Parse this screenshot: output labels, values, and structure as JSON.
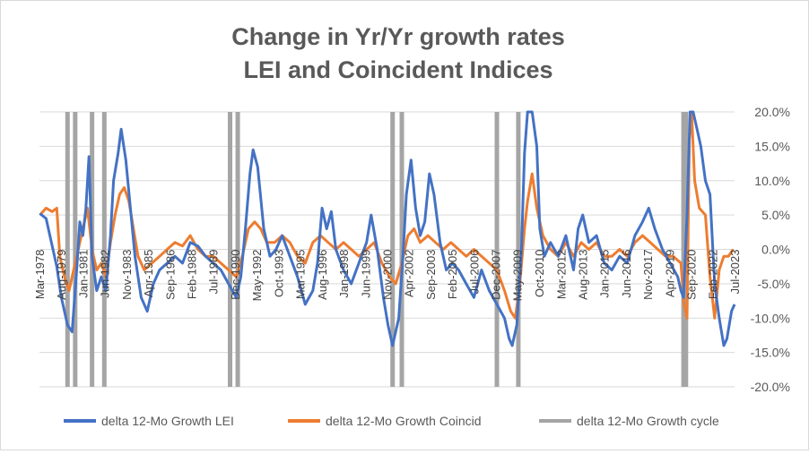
{
  "chart_data": {
    "type": "line",
    "title_lines": [
      "Change in Yr/Yr growth rates",
      "LEI and Coincident Indices"
    ],
    "y_axis": {
      "min": -20,
      "max": 20,
      "step": 5,
      "position": "right",
      "tick_labels": [
        "20.0%",
        "15.0%",
        "10.0%",
        "5.0%",
        "0.0%",
        "-5.0%",
        "-10.0%",
        "-15.0%",
        "-20.0%"
      ]
    },
    "x_axis": {
      "range": [
        1978.17,
        2023.5
      ],
      "tick_labels": [
        "Mar-1978",
        "Aug-1979",
        "Jan-1981",
        "Jun-1982",
        "Nov-1983",
        "Apr-1985",
        "Sep-1986",
        "Feb-1988",
        "Jul-1989",
        "Dec-1990",
        "May-1992",
        "Oct-1993",
        "Mar-1995",
        "Aug-1996",
        "Jan-1998",
        "Jun-1999",
        "Nov-2000",
        "Apr-2002",
        "Sep-2003",
        "Feb-2005",
        "Jul-2006",
        "Dec-2007",
        "May-2009",
        "Oct-2010",
        "Mar-2012",
        "Aug-2013",
        "Jan-2015",
        "Jun-2016",
        "Nov-2017",
        "Apr-2019",
        "Sep-2020",
        "Feb-2022",
        "Jul-2023"
      ],
      "tick_values": [
        1978.17,
        1979.58,
        1981.0,
        1982.42,
        1983.83,
        1985.25,
        1986.67,
        1988.08,
        1989.5,
        1990.92,
        1992.33,
        1993.75,
        1995.17,
        1996.58,
        1998.0,
        1999.42,
        2000.83,
        2002.25,
        2003.67,
        2005.08,
        2006.5,
        2007.92,
        2009.33,
        2010.75,
        2012.17,
        2013.58,
        2015.0,
        2016.42,
        2017.83,
        2019.25,
        2020.67,
        2022.08,
        2023.5
      ]
    },
    "legend_position": "bottom",
    "legend": [
      "delta 12-Mo Growth LEI",
      "delta 12-Mo Growth Coincid",
      "delta 12-Mo Growth cycle"
    ],
    "colors": {
      "lei": "#4472c4",
      "coincid": "#ed7d31",
      "cycle": "#a5a5a5",
      "grid": "#d9d9d9"
    },
    "cycle_bars": [
      1980.0,
      1980.5,
      1981.6,
      1982.4,
      1990.6,
      1991.1,
      2001.2,
      2001.8,
      2008.0,
      2009.4,
      2020.17,
      2020.33
    ],
    "series": [
      {
        "name": "delta 12-Mo Growth LEI",
        "points": [
          [
            1978.2,
            5.2
          ],
          [
            1978.6,
            4.5
          ],
          [
            1979.0,
            0.5
          ],
          [
            1979.3,
            -2.5
          ],
          [
            1979.6,
            -7
          ],
          [
            1980.0,
            -11
          ],
          [
            1980.3,
            -12
          ],
          [
            1980.6,
            -3
          ],
          [
            1980.8,
            4
          ],
          [
            1981.0,
            2
          ],
          [
            1981.2,
            6
          ],
          [
            1981.4,
            13.5
          ],
          [
            1981.6,
            -1
          ],
          [
            1981.9,
            -6
          ],
          [
            1982.2,
            -4
          ],
          [
            1982.5,
            -6
          ],
          [
            1982.8,
            2
          ],
          [
            1983.0,
            10
          ],
          [
            1983.3,
            14
          ],
          [
            1983.5,
            17.5
          ],
          [
            1983.8,
            13
          ],
          [
            1984.1,
            6
          ],
          [
            1984.4,
            -1
          ],
          [
            1984.8,
            -7
          ],
          [
            1985.2,
            -9
          ],
          [
            1985.6,
            -5
          ],
          [
            1986.0,
            -3
          ],
          [
            1986.5,
            -2
          ],
          [
            1987.0,
            -1
          ],
          [
            1987.5,
            -2
          ],
          [
            1988.0,
            1
          ],
          [
            1988.5,
            0.5
          ],
          [
            1989.0,
            -1
          ],
          [
            1989.5,
            -2
          ],
          [
            1990.0,
            -3
          ],
          [
            1990.5,
            -5
          ],
          [
            1991.0,
            -7
          ],
          [
            1991.3,
            -4
          ],
          [
            1991.6,
            3
          ],
          [
            1991.9,
            11
          ],
          [
            1992.1,
            14.5
          ],
          [
            1992.4,
            12
          ],
          [
            1992.8,
            3
          ],
          [
            1993.2,
            -1
          ],
          [
            1993.6,
            0
          ],
          [
            1994.0,
            2
          ],
          [
            1994.5,
            -1
          ],
          [
            1995.0,
            -4
          ],
          [
            1995.5,
            -8
          ],
          [
            1996.0,
            -6
          ],
          [
            1996.3,
            -2
          ],
          [
            1996.6,
            6
          ],
          [
            1996.9,
            3
          ],
          [
            1997.2,
            5.5
          ],
          [
            1997.5,
            0
          ],
          [
            1998.0,
            -3
          ],
          [
            1998.5,
            -5
          ],
          [
            1999.0,
            -2
          ],
          [
            1999.5,
            1
          ],
          [
            1999.8,
            5
          ],
          [
            2000.2,
            0
          ],
          [
            2000.6,
            -7
          ],
          [
            2000.9,
            -11
          ],
          [
            2001.2,
            -14
          ],
          [
            2001.6,
            -10
          ],
          [
            2001.9,
            0
          ],
          [
            2002.1,
            8
          ],
          [
            2002.4,
            13
          ],
          [
            2002.7,
            6
          ],
          [
            2003.0,
            2
          ],
          [
            2003.3,
            4
          ],
          [
            2003.6,
            11
          ],
          [
            2003.9,
            8
          ],
          [
            2004.3,
            1
          ],
          [
            2004.7,
            -3
          ],
          [
            2005.1,
            -2
          ],
          [
            2005.5,
            -3
          ],
          [
            2006.0,
            -5
          ],
          [
            2006.5,
            -7
          ],
          [
            2007.0,
            -3
          ],
          [
            2007.5,
            -6
          ],
          [
            2008.0,
            -8
          ],
          [
            2008.5,
            -10
          ],
          [
            2008.8,
            -13
          ],
          [
            2009.0,
            -14
          ],
          [
            2009.3,
            -11
          ],
          [
            2009.6,
            0
          ],
          [
            2009.8,
            14
          ],
          [
            2010.0,
            20
          ],
          [
            2010.3,
            20
          ],
          [
            2010.6,
            15
          ],
          [
            2010.8,
            3
          ],
          [
            2011.1,
            -1
          ],
          [
            2011.5,
            1
          ],
          [
            2012.0,
            -1
          ],
          [
            2012.5,
            2
          ],
          [
            2013.0,
            -3
          ],
          [
            2013.3,
            3
          ],
          [
            2013.6,
            5
          ],
          [
            2014.0,
            1
          ],
          [
            2014.5,
            2
          ],
          [
            2015.0,
            -2
          ],
          [
            2015.5,
            -3
          ],
          [
            2016.0,
            -1
          ],
          [
            2016.5,
            -2
          ],
          [
            2017.0,
            2
          ],
          [
            2017.5,
            4
          ],
          [
            2017.9,
            6
          ],
          [
            2018.3,
            3
          ],
          [
            2018.8,
            0
          ],
          [
            2019.3,
            -2
          ],
          [
            2019.8,
            -4
          ],
          [
            2020.0,
            -6
          ],
          [
            2020.17,
            -7
          ],
          [
            2020.4,
            5
          ],
          [
            2020.6,
            20
          ],
          [
            2020.8,
            20
          ],
          [
            2021.0,
            18
          ],
          [
            2021.3,
            15
          ],
          [
            2021.6,
            10
          ],
          [
            2021.9,
            8
          ],
          [
            2022.2,
            -5
          ],
          [
            2022.5,
            -10
          ],
          [
            2022.8,
            -14
          ],
          [
            2023.0,
            -13
          ],
          [
            2023.3,
            -9
          ],
          [
            2023.5,
            -8
          ]
        ]
      },
      {
        "name": "delta 12-Mo Growth Coincid",
        "points": [
          [
            1978.2,
            5
          ],
          [
            1978.6,
            6
          ],
          [
            1979.0,
            5.5
          ],
          [
            1979.3,
            6
          ],
          [
            1979.5,
            -1
          ],
          [
            1979.8,
            -4
          ],
          [
            1980.1,
            -6
          ],
          [
            1980.4,
            -3
          ],
          [
            1980.7,
            0
          ],
          [
            1981.0,
            3
          ],
          [
            1981.3,
            6
          ],
          [
            1981.6,
            0
          ],
          [
            1981.9,
            -3
          ],
          [
            1982.2,
            -2
          ],
          [
            1982.5,
            -4
          ],
          [
            1982.8,
            1
          ],
          [
            1983.1,
            5
          ],
          [
            1983.4,
            8
          ],
          [
            1983.7,
            9
          ],
          [
            1984.0,
            7
          ],
          [
            1984.3,
            3
          ],
          [
            1984.6,
            -1
          ],
          [
            1985.0,
            -3
          ],
          [
            1985.5,
            -2
          ],
          [
            1986.0,
            -1
          ],
          [
            1986.5,
            0
          ],
          [
            1987.0,
            1
          ],
          [
            1987.5,
            0.5
          ],
          [
            1988.0,
            2
          ],
          [
            1988.5,
            0
          ],
          [
            1989.0,
            -1
          ],
          [
            1989.5,
            -1
          ],
          [
            1990.0,
            -2
          ],
          [
            1990.5,
            -3
          ],
          [
            1991.0,
            -4
          ],
          [
            1991.4,
            -1
          ],
          [
            1991.8,
            3
          ],
          [
            1992.2,
            4
          ],
          [
            1992.6,
            3
          ],
          [
            1993.0,
            1
          ],
          [
            1993.5,
            1
          ],
          [
            1994.0,
            2
          ],
          [
            1994.5,
            1
          ],
          [
            1995.0,
            -1
          ],
          [
            1995.5,
            -2
          ],
          [
            1996.0,
            1
          ],
          [
            1996.5,
            2
          ],
          [
            1997.0,
            1
          ],
          [
            1997.5,
            0
          ],
          [
            1998.0,
            1
          ],
          [
            1998.5,
            0
          ],
          [
            1999.0,
            -1
          ],
          [
            1999.5,
            0
          ],
          [
            2000.0,
            1
          ],
          [
            2000.5,
            -2
          ],
          [
            2001.0,
            -4
          ],
          [
            2001.4,
            -5
          ],
          [
            2001.8,
            -2
          ],
          [
            2002.2,
            2
          ],
          [
            2002.6,
            3
          ],
          [
            2003.0,
            1
          ],
          [
            2003.5,
            2
          ],
          [
            2004.0,
            1
          ],
          [
            2004.5,
            0
          ],
          [
            2005.0,
            1
          ],
          [
            2005.5,
            0
          ],
          [
            2006.0,
            -1
          ],
          [
            2006.5,
            0
          ],
          [
            2007.0,
            -1
          ],
          [
            2007.5,
            -2
          ],
          [
            2008.0,
            -3
          ],
          [
            2008.5,
            -6
          ],
          [
            2008.9,
            -9
          ],
          [
            2009.2,
            -10
          ],
          [
            2009.5,
            -5
          ],
          [
            2009.8,
            3
          ],
          [
            2010.0,
            7
          ],
          [
            2010.3,
            11
          ],
          [
            2010.6,
            6
          ],
          [
            2011.0,
            2
          ],
          [
            2011.5,
            0
          ],
          [
            2012.0,
            -1
          ],
          [
            2012.5,
            1
          ],
          [
            2013.0,
            -1
          ],
          [
            2013.5,
            1
          ],
          [
            2014.0,
            0
          ],
          [
            2014.5,
            1
          ],
          [
            2015.0,
            -1
          ],
          [
            2015.5,
            -1
          ],
          [
            2016.0,
            0
          ],
          [
            2016.5,
            -1
          ],
          [
            2017.0,
            1
          ],
          [
            2017.5,
            2
          ],
          [
            2018.0,
            1
          ],
          [
            2018.5,
            0
          ],
          [
            2019.0,
            -1
          ],
          [
            2019.5,
            -1
          ],
          [
            2020.0,
            -2
          ],
          [
            2020.2,
            -8
          ],
          [
            2020.4,
            -10
          ],
          [
            2020.55,
            16
          ],
          [
            2020.7,
            20
          ],
          [
            2020.9,
            10
          ],
          [
            2021.2,
            6
          ],
          [
            2021.6,
            5
          ],
          [
            2021.9,
            -4
          ],
          [
            2022.2,
            -10
          ],
          [
            2022.5,
            -3
          ],
          [
            2022.8,
            -1
          ],
          [
            2023.1,
            -1
          ],
          [
            2023.4,
            0
          ]
        ]
      }
    ]
  }
}
